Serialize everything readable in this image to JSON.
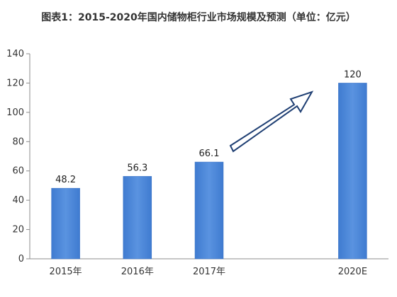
{
  "chart_data": {
    "type": "bar",
    "title": "图表1：2015-2020年国内储物柜行业市场规模及预测（单位：亿元）",
    "categories": [
      "2015年",
      "2016年",
      "2017年",
      "2020E"
    ],
    "values": [
      48.2,
      56.3,
      66.1,
      120
    ],
    "data_labels": [
      "48.2",
      "56.3",
      "66.1",
      "120"
    ],
    "ylim": [
      0,
      140
    ],
    "yticks": [
      "0",
      "20",
      "40",
      "60",
      "80",
      "100",
      "120",
      "140"
    ],
    "xlabel": "",
    "ylabel": "",
    "grid": false,
    "bar_color": "#4a86d8",
    "arrow": "growth-arrow"
  }
}
